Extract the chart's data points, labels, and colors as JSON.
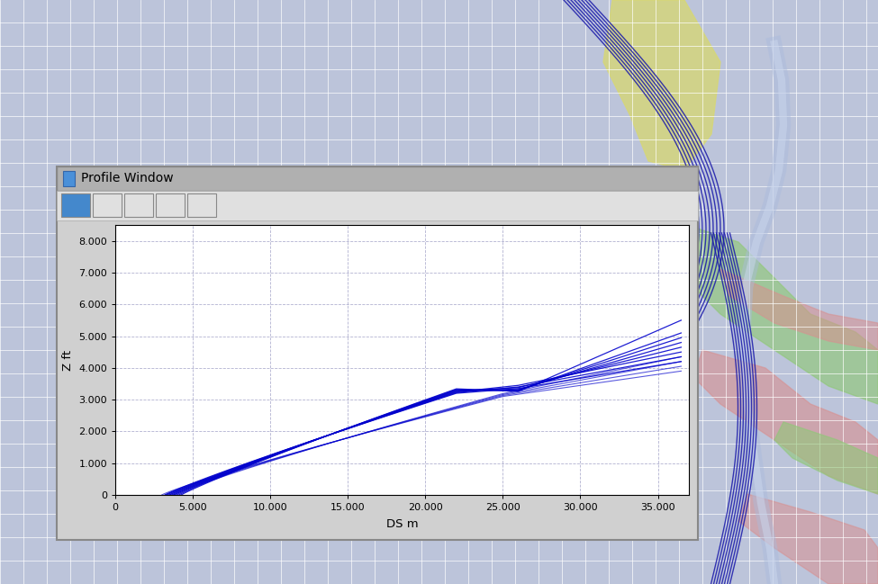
{
  "title": "Profile Window",
  "xlabel": "DS m",
  "ylabel": "Z ft",
  "xlim": [
    0,
    37000
  ],
  "ylim": [
    0,
    8500
  ],
  "xticks": [
    0,
    5000,
    10000,
    15000,
    20000,
    25000,
    30000,
    35000
  ],
  "xtick_labels": [
    "0",
    "5.000",
    "10.000",
    "15.000",
    "20.000",
    "25.000",
    "30.000",
    "35.000"
  ],
  "yticks": [
    0,
    1000,
    2000,
    3000,
    4000,
    5000,
    6000,
    7000,
    8000
  ],
  "ytick_labels": [
    "0",
    "1.000",
    "2.000",
    "3.000",
    "4.000",
    "5.000",
    "6.000",
    "7.000",
    "8.000"
  ],
  "line_color": "#0000CC",
  "bg_outer": "#bcc4da",
  "bg_map_color": "#c8d0e8",
  "grid_color": "#aaaacc",
  "grid_ls": "--",
  "panel_bg": "#d0d0d0",
  "toolbar_bg": "#e0e0e0",
  "titlebar_bg": "#b0b0b0",
  "plot_bg": "#ffffff",
  "profile_end_y_values": [
    4200,
    4350,
    4500,
    4650,
    4800,
    4950,
    5100,
    5500
  ],
  "flat_end_y_values": [
    3350,
    3400,
    3450,
    3380,
    3320,
    3300,
    3280,
    3260
  ],
  "flat_start_x": 26000,
  "flat_end_x": 36000
}
